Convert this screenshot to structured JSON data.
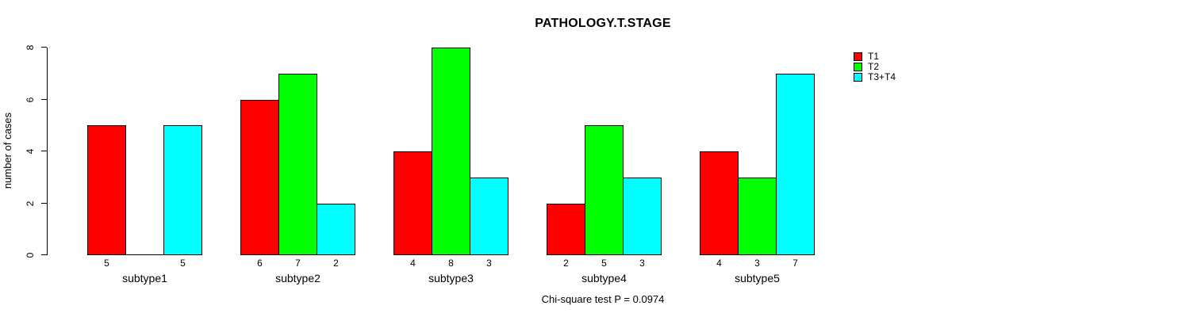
{
  "chart_data": {
    "type": "bar",
    "title": "PATHOLOGY.T.STAGE",
    "xlabel": "",
    "ylabel": "number of cases",
    "categories": [
      "subtype1",
      "subtype2",
      "subtype3",
      "subtype4",
      "subtype5"
    ],
    "series": [
      {
        "name": "T1",
        "color": "#ff0000",
        "values": [
          5,
          6,
          4,
          2,
          4
        ]
      },
      {
        "name": "T2",
        "color": "#00ff00",
        "values": [
          0,
          7,
          8,
          5,
          3
        ]
      },
      {
        "name": "T3+T4",
        "color": "#00ffff",
        "values": [
          5,
          2,
          3,
          3,
          7
        ]
      }
    ],
    "yticks": [
      0,
      2,
      4,
      6,
      8
    ],
    "ylim": [
      0,
      8
    ],
    "grid": false,
    "legend_position": "top-right-outside",
    "bar_value_labels": "shown under each bar; hidden when value is 0",
    "annotation": "Chi-square test P = 0.0974"
  },
  "colors": {
    "background": "#ffffff",
    "axis": "#000000",
    "text": "#000000"
  }
}
